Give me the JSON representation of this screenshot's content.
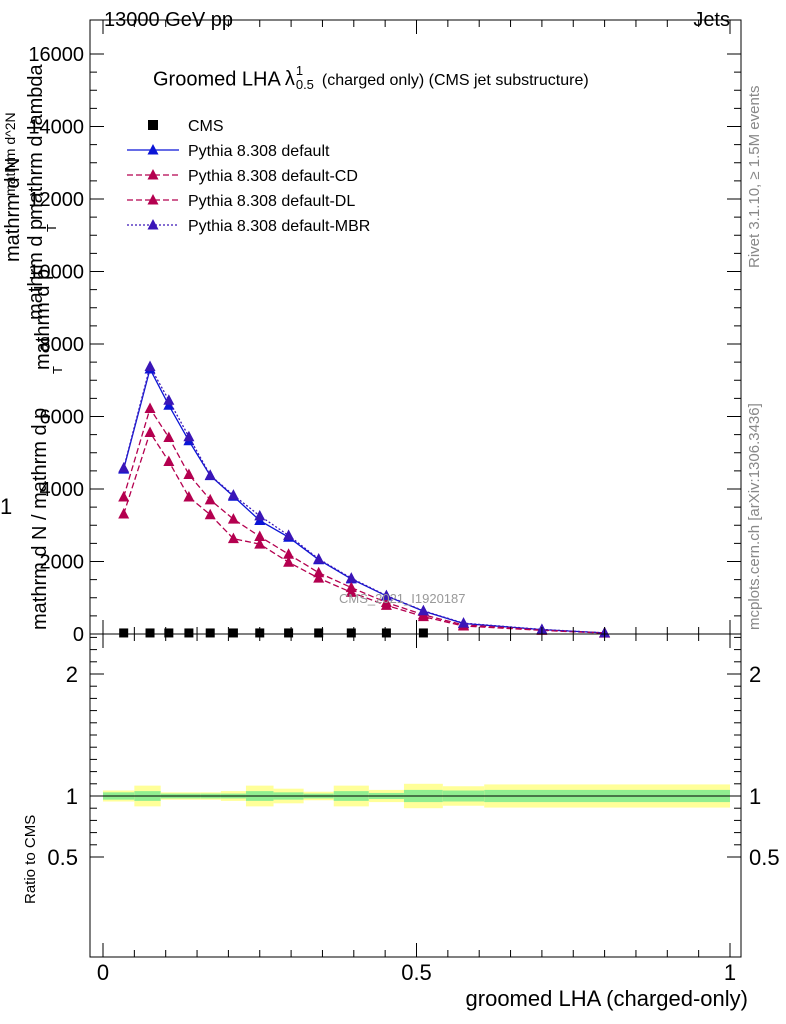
{
  "header": {
    "energy": "13000 GeV pp",
    "category": "Jets"
  },
  "sidebar": {
    "version": "Rivet 3.1.10, ≥ 1.5M events",
    "source": "mcplots.cern.ch [arXiv:1306.3436]"
  },
  "chart_data": {
    "type": "line",
    "title_main": "Groomed LHA",
    "title_symbol": "λ",
    "title_sup": "1",
    "title_sub": "0.5",
    "title_rest": "(charged only) (CMS jet substructure)",
    "watermark": "CMS_2021_I1920187",
    "ylabel_main": {
      "prefix": "1",
      "lines": [
        "mathrm d N / mathrm d p",
        "mathrm d N",
        "mathrm d p",
        "mathrm d lambda",
        "mathrm d p",
        "mathrm d^2N",
        "T",
        "T"
      ]
    },
    "ylabel_ratio": "Ratio to CMS",
    "xlabel": "groomed LHA (charged-only)",
    "xlim": [
      0,
      1
    ],
    "ylim_main": [
      0,
      16000
    ],
    "ylim_ratio": [
      0.4,
      2.4
    ],
    "y_ticks_main": [
      "2000",
      "4000",
      "6000",
      "8000",
      "10000",
      "12000",
      "14000",
      "16000",
      "0"
    ],
    "y_ticks_ratio": [
      "0.5",
      "1",
      "2"
    ],
    "x_ticks": [
      "0",
      "0.5",
      "1"
    ],
    "x": [
      0.033,
      0.075,
      0.105,
      0.137,
      0.171,
      0.208,
      0.25,
      0.296,
      0.344,
      0.396,
      0.452,
      0.511,
      0.575,
      0.7,
      0.8
    ],
    "bin_edges": [
      0,
      0.05,
      0.092,
      0.118,
      0.155,
      0.188,
      0.228,
      0.272,
      0.32,
      0.368,
      0.424,
      0.48,
      0.542,
      0.608,
      1.0
    ],
    "series": [
      {
        "name": "CMS",
        "color": "#000000",
        "marker": "square",
        "dash": "",
        "values": [
          15,
          15,
          15,
          15,
          15,
          15,
          15,
          15,
          15,
          15,
          15,
          15,
          null,
          null,
          null
        ]
      },
      {
        "name": "Pythia 8.308 default",
        "color": "#0b15d6",
        "marker": "triangle",
        "dash": "",
        "values": [
          4550,
          7310,
          6310,
          5330,
          4370,
          3800,
          3130,
          2670,
          2050,
          1520,
          1050,
          630,
          290,
          120,
          30
        ]
      },
      {
        "name": "Pythia 8.308 default-CD",
        "color": "#b4004f",
        "marker": "triangle",
        "dash": "6,3",
        "values": [
          3780,
          6220,
          5420,
          4400,
          3700,
          3170,
          2690,
          2200,
          1690,
          1280,
          870,
          530,
          250,
          110,
          30
        ]
      },
      {
        "name": "Pythia 8.308 default-DL",
        "color": "#b4004f",
        "marker": "triangle",
        "dash": "6,3",
        "values": [
          3310,
          5560,
          4760,
          3780,
          3290,
          2630,
          2480,
          1980,
          1540,
          1150,
          790,
          480,
          220,
          100,
          25
        ]
      },
      {
        "name": "Pythia 8.308 default-MBR",
        "color": "#3a16b8",
        "marker": "triangle",
        "dash": "2,2",
        "values": [
          4580,
          7380,
          6450,
          5440,
          4380,
          3830,
          3260,
          2720,
          2070,
          1540,
          1060,
          640,
          300,
          125,
          30
        ]
      }
    ],
    "ratio_bands": {
      "green_color": "#90ee90",
      "yellow_color": "#ffff99",
      "green_halfwidth": [
        0.03,
        0.04,
        0.02,
        0.02,
        0.02,
        0.02,
        0.04,
        0.03,
        0.02,
        0.04,
        0.025,
        0.05,
        0.045,
        0.05
      ],
      "yellow_halfwidth": [
        0.045,
        0.085,
        0.03,
        0.03,
        0.03,
        0.04,
        0.085,
        0.06,
        0.035,
        0.085,
        0.05,
        0.1,
        0.08,
        0.095
      ]
    }
  }
}
